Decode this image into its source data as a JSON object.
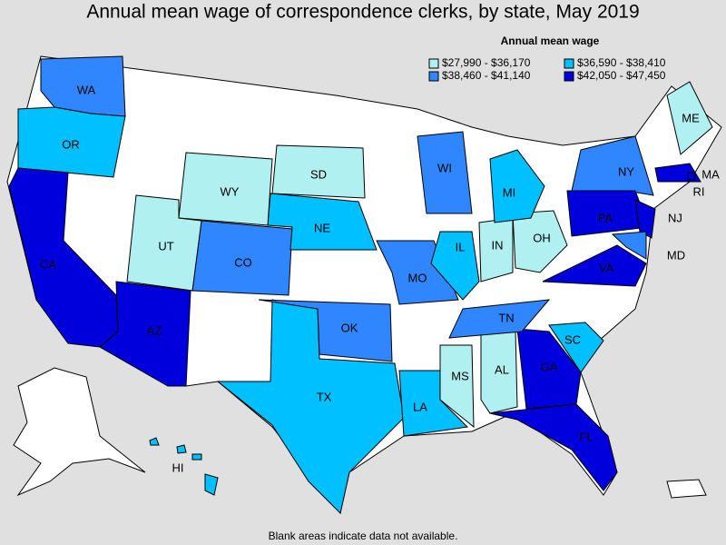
{
  "title": "Annual mean wage of correspondence clerks, by state, May 2019",
  "legend": {
    "title": "Annual mean wage",
    "items": [
      {
        "label": "$27,990 - $36,170",
        "color": "#b0f0f0"
      },
      {
        "label": "$36,590 - $38,410",
        "color": "#00c0ff"
      },
      {
        "label": "$38,460 - $41,140",
        "color": "#2f86ff"
      },
      {
        "label": "$42,050 - $47,450",
        "color": "#0000dd"
      }
    ]
  },
  "states": [
    {
      "label": "WA",
      "class": 2
    },
    {
      "label": "OR",
      "class": 1
    },
    {
      "label": "CA",
      "class": 3
    },
    {
      "label": "AZ",
      "class": 3
    },
    {
      "label": "CO",
      "class": 2
    },
    {
      "label": "NE",
      "class": 1
    },
    {
      "label": "SD",
      "class": 0
    },
    {
      "label": "WY",
      "class": 0
    },
    {
      "label": "UT",
      "class": 0
    },
    {
      "label": "TX",
      "class": 1
    },
    {
      "label": "OK",
      "class": 2
    },
    {
      "label": "MO",
      "class": 2
    },
    {
      "label": "LA",
      "class": 1
    },
    {
      "label": "MS",
      "class": 0
    },
    {
      "label": "AL",
      "class": 0
    },
    {
      "label": "GA",
      "class": 3
    },
    {
      "label": "FL",
      "class": 3
    },
    {
      "label": "SC",
      "class": 1
    },
    {
      "label": "TN",
      "class": 2
    },
    {
      "label": "IL",
      "class": 1
    },
    {
      "label": "IN",
      "class": 0
    },
    {
      "label": "OH",
      "class": 0
    },
    {
      "label": "MI",
      "class": 1
    },
    {
      "label": "WI",
      "class": 2
    },
    {
      "label": "NY",
      "class": 2
    },
    {
      "label": "PA",
      "class": 3
    },
    {
      "label": "NJ",
      "class": 3
    },
    {
      "label": "MD",
      "class": 2
    },
    {
      "label": "VA",
      "class": 3
    },
    {
      "label": "ME",
      "class": 0
    },
    {
      "label": "MA",
      "class": 3
    },
    {
      "label": "RI",
      "class": 3
    },
    {
      "label": "HI",
      "class": 1
    }
  ],
  "footnote": "Blank areas indicate data not available."
}
